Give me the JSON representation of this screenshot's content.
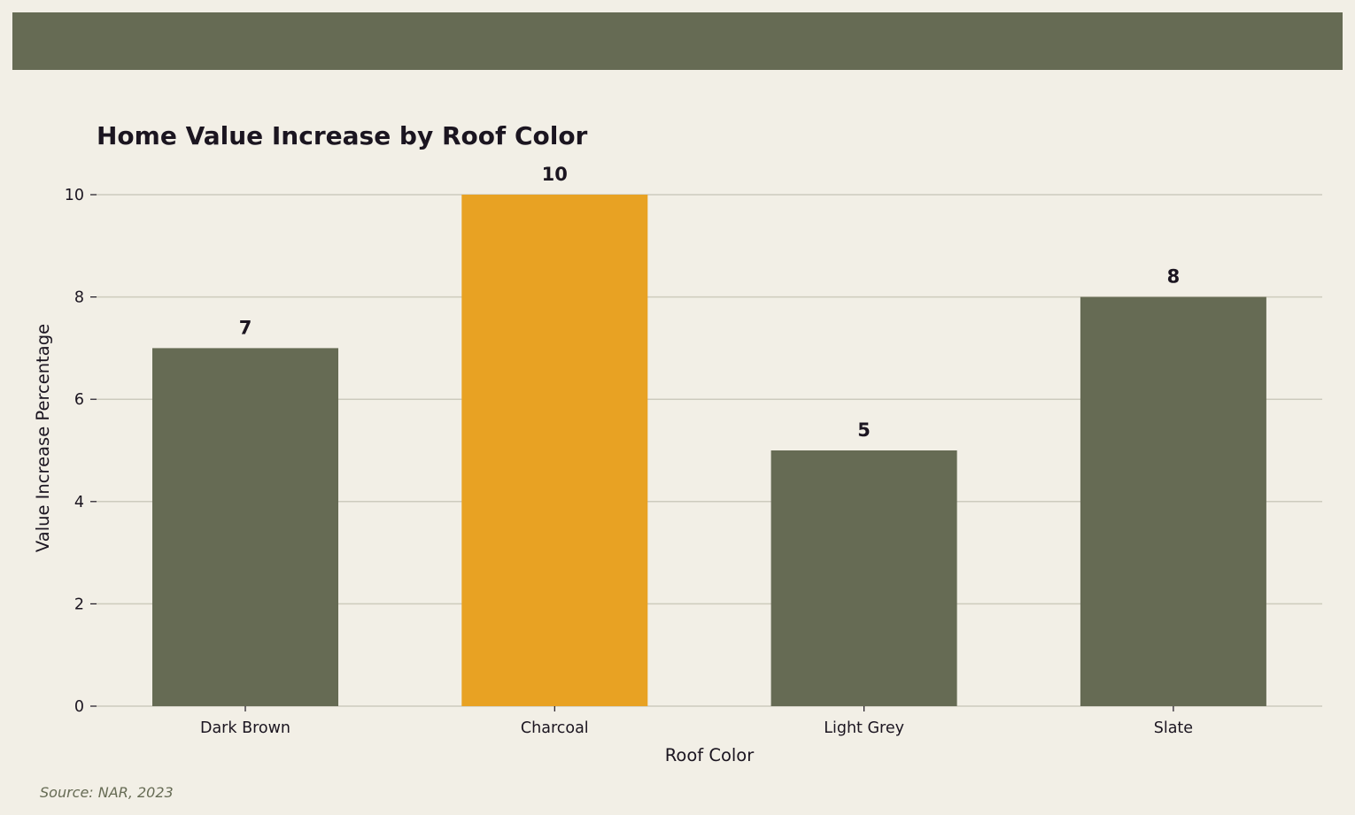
{
  "chart_data": {
    "type": "bar",
    "title": "Home Value Increase by Roof Color",
    "xlabel": "Roof Color",
    "ylabel": "Value Increase Percentage",
    "categories": [
      "Dark Brown",
      "Charcoal",
      "Light Grey",
      "Slate"
    ],
    "values": [
      7,
      10,
      5,
      8
    ],
    "value_labels": [
      "7",
      "10",
      "5",
      "8"
    ],
    "ylim": [
      0,
      10
    ],
    "yticks": [
      0,
      2,
      4,
      6,
      8,
      10
    ],
    "ytick_labels": [
      "0",
      "2",
      "4",
      "6",
      "8",
      "10"
    ],
    "grid": "horizontal",
    "colors": {
      "default_bar": "#666b54",
      "highlight_bar": "#e8a223",
      "highlight_category": "Charcoal",
      "grid": "#cdcbbd",
      "background": "#f2efe6",
      "text": "#1b1520"
    }
  },
  "source": "Source: NAR, 2023"
}
